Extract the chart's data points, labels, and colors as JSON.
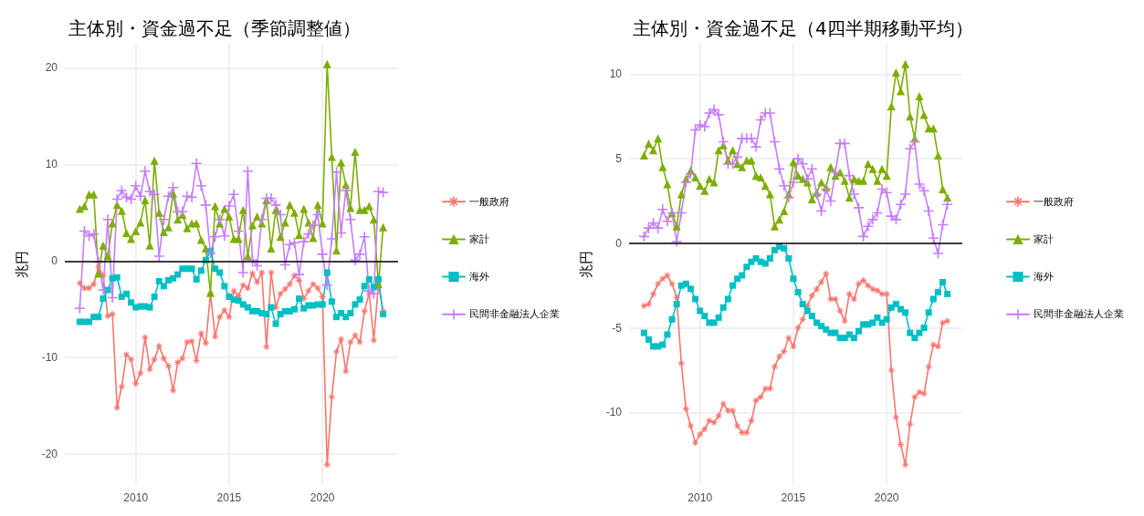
{
  "chart_data": [
    {
      "type": "line",
      "title": "主体別・資金過不足（季節調整値）",
      "ylabel": "兆円",
      "x": [
        2007,
        2007.25,
        2007.5,
        2007.75,
        2008,
        2008.25,
        2008.5,
        2008.75,
        2009,
        2009.25,
        2009.5,
        2009.75,
        2010,
        2010.25,
        2010.5,
        2010.75,
        2011,
        2011.25,
        2011.5,
        2011.75,
        2012,
        2012.25,
        2012.5,
        2012.75,
        2013,
        2013.25,
        2013.5,
        2013.75,
        2014,
        2014.25,
        2014.5,
        2014.75,
        2015,
        2015.25,
        2015.5,
        2015.75,
        2016,
        2016.25,
        2016.5,
        2016.75,
        2017,
        2017.25,
        2017.5,
        2017.75,
        2018,
        2018.25,
        2018.5,
        2018.75,
        2019,
        2019.25,
        2019.5,
        2019.75,
        2020,
        2020.25,
        2020.5,
        2020.75,
        2021,
        2021.25,
        2021.5,
        2021.75,
        2022,
        2022.25,
        2022.5,
        2022.75,
        2023,
        2023.25
      ],
      "series": [
        {
          "name": "一般政府",
          "color": "#f8766d",
          "marker": "star",
          "values": [
            -2.3,
            -2.8,
            -2.8,
            -2.4,
            -0.6,
            -1.5,
            -5.7,
            -5.5,
            -15.2,
            -13.0,
            -9.7,
            -10.2,
            -12.7,
            -11.6,
            -7.9,
            -11.2,
            -10.2,
            -8.8,
            -10.1,
            -10.9,
            -13.4,
            -10.5,
            -10.1,
            -8.4,
            -8.3,
            -10.3,
            -7.5,
            -8.5,
            -3.4,
            -7.8,
            -5.8,
            -5.1,
            -5.8,
            -3.1,
            -3.6,
            -2.5,
            -2.8,
            -1.3,
            -2.2,
            -1.2,
            -8.9,
            -1.2,
            -4.8,
            -3.4,
            -2.9,
            -2.4,
            -1.5,
            -2.0,
            -3.9,
            -3.1,
            -2.4,
            -2.8,
            -3.7,
            -21.1,
            -14.1,
            -9.4,
            -8.1,
            -11.4,
            -8.4,
            -7.7,
            -8.4,
            -5.2,
            -3.3,
            -8.2,
            -2.4,
            -5.2
          ]
        },
        {
          "name": "家計",
          "color": "#7cae00",
          "marker": "triangle",
          "values": [
            5.4,
            5.7,
            6.9,
            6.9,
            -1.3,
            1.6,
            0.5,
            3.9,
            5.8,
            5.2,
            2.9,
            2.3,
            3.1,
            4.0,
            6.3,
            1.6,
            10.4,
            5.0,
            3.0,
            3.5,
            7.0,
            4.3,
            4.8,
            3.4,
            3.9,
            3.9,
            2.2,
            1.3,
            -3.3,
            5.7,
            3.9,
            5.4,
            4.6,
            2.3,
            2.3,
            5.3,
            0.5,
            3.7,
            4.6,
            3.9,
            6.3,
            1.3,
            5.3,
            2.5,
            4.0,
            5.8,
            5.0,
            2.7,
            5.4,
            4.0,
            2.4,
            5.8,
            3.9,
            20.4,
            10.8,
            1.1,
            10.2,
            7.9,
            5.5,
            11.3,
            5.3,
            5.3,
            5.7,
            4.3,
            -2.4,
            3.5
          ]
        },
        {
          "name": "海外",
          "color": "#00bfc4",
          "marker": "square",
          "values": [
            -6.3,
            -6.3,
            -6.3,
            -5.8,
            -5.8,
            -3.9,
            -3.0,
            -1.8,
            -1.7,
            -3.7,
            -3.4,
            -4.3,
            -4.8,
            -4.7,
            -4.7,
            -4.8,
            -3.7,
            -2.1,
            -2.6,
            -2.0,
            -1.8,
            -1.4,
            -0.8,
            -0.8,
            -0.8,
            -1.9,
            -1.0,
            0.1,
            1.0,
            -0.8,
            -1.2,
            -2.6,
            -3.7,
            -4.0,
            -4.1,
            -4.5,
            -4.8,
            -5.2,
            -5.2,
            -5.4,
            -5.5,
            -4.8,
            -6.5,
            -5.5,
            -5.2,
            -5.2,
            -5.0,
            -3.9,
            -4.9,
            -4.6,
            -4.6,
            -4.5,
            -4.5,
            -1.2,
            -4.2,
            -5.8,
            -5.4,
            -5.8,
            -5.4,
            -4.5,
            -4.0,
            -2.6,
            -1.9,
            -2.7,
            -1.9,
            -5.5
          ]
        },
        {
          "name": "民間非金融法人企業",
          "color": "#c77cff",
          "marker": "cross",
          "values": [
            -4.9,
            3.1,
            2.6,
            2.8,
            -0.1,
            -3.0,
            4.3,
            -3.8,
            6.4,
            7.3,
            6.6,
            6.4,
            7.8,
            6.7,
            9.3,
            7.2,
            6.9,
            0.5,
            4.3,
            6.7,
            7.6,
            5.1,
            5.1,
            6.7,
            6.6,
            10.1,
            7.8,
            5.8,
            0.8,
            2.5,
            4.3,
            2.6,
            5.7,
            6.9,
            3.1,
            -1.2,
            9.3,
            0.1,
            -0.5,
            4.3,
            6.5,
            6.5,
            5.8,
            4.8,
            -0.4,
            1.7,
            1.9,
            -1.4,
            2.0,
            2.8,
            3.7,
            4.8,
            0.7,
            -2.5,
            2.3,
            9.2,
            2.9,
            7.3,
            4.3,
            0.1,
            0.7,
            2.5,
            -3.1,
            -3.4,
            7.2,
            7.1
          ]
        }
      ],
      "xlim": [
        2006.2,
        2024.05
      ],
      "xticks": [
        2010,
        2015,
        2020
      ],
      "ylim": [
        -23.2,
        22.5
      ],
      "yticks": [
        -20,
        -10,
        0,
        10,
        20
      ],
      "ref_lines": [
        {
          "axis": "y",
          "value": 0,
          "color": "#000000"
        }
      ],
      "grid": true,
      "legend": "right",
      "line_style": "solid"
    },
    {
      "type": "line",
      "title": "主体別・資金過不足（4四半期移動平均）",
      "ylabel": "兆円",
      "x": [
        2007,
        2007.25,
        2007.5,
        2007.75,
        2008,
        2008.25,
        2008.5,
        2008.75,
        2009,
        2009.25,
        2009.5,
        2009.75,
        2010,
        2010.25,
        2010.5,
        2010.75,
        2011,
        2011.25,
        2011.5,
        2011.75,
        2012,
        2012.25,
        2012.5,
        2012.75,
        2013,
        2013.25,
        2013.5,
        2013.75,
        2014,
        2014.25,
        2014.5,
        2014.75,
        2015,
        2015.25,
        2015.5,
        2015.75,
        2016,
        2016.25,
        2016.5,
        2016.75,
        2017,
        2017.25,
        2017.5,
        2017.75,
        2018,
        2018.25,
        2018.5,
        2018.75,
        2019,
        2019.25,
        2019.5,
        2019.75,
        2020,
        2020.25,
        2020.5,
        2020.75,
        2021,
        2021.25,
        2021.5,
        2021.75,
        2022,
        2022.25,
        2022.5,
        2022.75,
        2023,
        2023.25
      ],
      "series": [
        {
          "name": "一般政府",
          "color": "#f8766d",
          "marker": "star",
          "values": [
            -3.7,
            -3.6,
            -3.0,
            -2.4,
            -2.1,
            -1.9,
            -2.4,
            -3.2,
            -7.1,
            -9.8,
            -10.8,
            -11.8,
            -11.3,
            -11.0,
            -10.5,
            -10.6,
            -10.2,
            -9.5,
            -9.9,
            -9.9,
            -10.8,
            -11.2,
            -11.2,
            -10.5,
            -9.3,
            -9.1,
            -8.6,
            -8.6,
            -7.3,
            -6.7,
            -6.4,
            -5.6,
            -6.1,
            -5.0,
            -4.5,
            -3.7,
            -3.1,
            -2.7,
            -2.3,
            -1.8,
            -3.3,
            -3.3,
            -4.0,
            -4.6,
            -3.0,
            -3.3,
            -2.4,
            -2.2,
            -2.5,
            -2.7,
            -2.8,
            -3.0,
            -3.0,
            -7.5,
            -10.3,
            -11.9,
            -13.1,
            -10.7,
            -9.1,
            -8.8,
            -8.9,
            -7.3,
            -6.0,
            -6.1,
            -4.7,
            -4.6
          ]
        },
        {
          "name": "家計",
          "color": "#7cae00",
          "marker": "triangle",
          "values": [
            5.2,
            5.9,
            5.5,
            6.2,
            4.5,
            3.5,
            1.8,
            1.0,
            2.9,
            3.8,
            4.3,
            3.9,
            3.4,
            3.1,
            3.8,
            3.6,
            5.5,
            5.8,
            4.9,
            5.5,
            4.7,
            4.5,
            4.9,
            4.9,
            4.0,
            3.9,
            3.4,
            2.9,
            1.0,
            1.4,
            1.9,
            2.9,
            4.8,
            4.0,
            3.8,
            3.6,
            2.6,
            3.0,
            3.6,
            3.3,
            4.5,
            4.0,
            4.2,
            3.7,
            2.7,
            3.8,
            3.7,
            3.7,
            4.7,
            4.4,
            3.7,
            4.4,
            4.0,
            8.1,
            10.1,
            9.0,
            10.6,
            7.5,
            6.2,
            8.7,
            7.6,
            6.8,
            6.8,
            5.2,
            3.2,
            2.7
          ]
        },
        {
          "name": "海外",
          "color": "#00bfc4",
          "marker": "square",
          "values": [
            -5.3,
            -5.7,
            -6.1,
            -6.1,
            -6.0,
            -5.4,
            -4.5,
            -3.6,
            -2.5,
            -2.4,
            -2.7,
            -3.3,
            -4.0,
            -4.3,
            -4.7,
            -4.7,
            -4.4,
            -3.8,
            -3.3,
            -2.5,
            -2.1,
            -1.9,
            -1.4,
            -1.1,
            -0.9,
            -1.1,
            -1.2,
            -0.9,
            -0.4,
            -0.2,
            -0.3,
            -0.9,
            -2.1,
            -2.9,
            -3.6,
            -4.0,
            -4.3,
            -4.7,
            -4.9,
            -5.1,
            -5.3,
            -5.3,
            -5.6,
            -5.6,
            -5.4,
            -5.6,
            -5.2,
            -4.8,
            -4.8,
            -4.7,
            -4.4,
            -4.7,
            -4.5,
            -3.8,
            -3.6,
            -3.9,
            -4.1,
            -5.3,
            -5.6,
            -5.3,
            -5.0,
            -4.1,
            -3.3,
            -2.9,
            -2.3,
            -3.0
          ]
        },
        {
          "name": "民間非金融法人企業",
          "color": "#c77cff",
          "marker": "cross",
          "values": [
            0.4,
            0.9,
            1.2,
            0.9,
            2.0,
            1.3,
            1.8,
            0.1,
            1.8,
            3.6,
            4.1,
            6.7,
            7.0,
            6.9,
            7.7,
            7.9,
            7.6,
            6.0,
            4.7,
            4.7,
            5.1,
            6.2,
            6.2,
            6.2,
            5.7,
            7.3,
            7.7,
            7.7,
            6.0,
            4.4,
            3.4,
            2.7,
            3.6,
            5.0,
            4.7,
            3.8,
            4.4,
            2.9,
            1.9,
            3.2,
            2.5,
            4.2,
            5.9,
            5.9,
            4.0,
            2.9,
            2.1,
            0.4,
            1.0,
            1.4,
            1.8,
            3.2,
            3.0,
            1.6,
            1.4,
            2.3,
            2.9,
            5.6,
            6.0,
            3.5,
            3.1,
            1.9,
            0.3,
            -0.6,
            1.1,
            2.3
          ]
        }
      ],
      "xlim": [
        2006.2,
        2024.05
      ],
      "xticks": [
        2010,
        2015,
        2020
      ],
      "ylim": [
        -14.3,
        11.8
      ],
      "yticks": [
        -10,
        -5,
        0,
        5,
        10
      ],
      "ref_lines": [
        {
          "axis": "y",
          "value": 0,
          "color": "#000000"
        }
      ],
      "grid": true,
      "legend": "right",
      "line_style": "solid"
    }
  ]
}
